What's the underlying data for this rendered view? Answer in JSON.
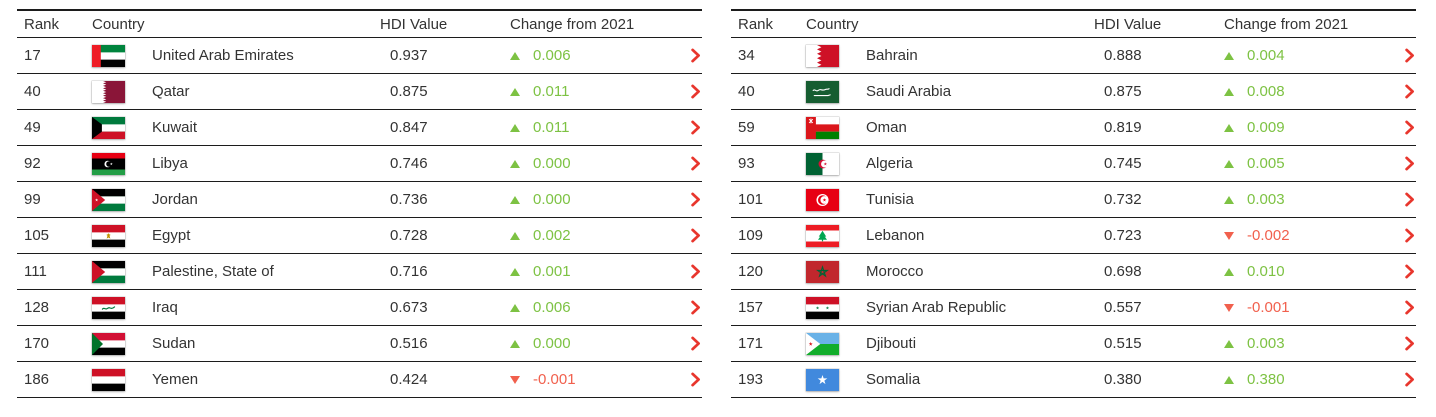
{
  "colors": {
    "positive_change": "#7dc243",
    "negative_change": "#f1604d",
    "chevron": "#e8362d",
    "row_border": "#1c1c1c",
    "text": "#333333",
    "background": "#ffffff"
  },
  "icons": {
    "up_triangle": "▲",
    "down_triangle": "▼",
    "chevron_right": "›"
  },
  "headers": {
    "rank": "Rank",
    "country": "Country",
    "hdi_value": "HDI Value",
    "change": "Change from 2021"
  },
  "chart_data": {
    "type": "table",
    "columns": [
      "Rank",
      "Country",
      "HDI Value",
      "Change from 2021"
    ],
    "tables": [
      {
        "rows": [
          {
            "rank": "17",
            "country": "United Arab Emirates",
            "flag_code": "ae",
            "hdi": "0.937",
            "change": "0.006",
            "direction": "up"
          },
          {
            "rank": "40",
            "country": "Qatar",
            "flag_code": "qa",
            "hdi": "0.875",
            "change": "0.011",
            "direction": "up"
          },
          {
            "rank": "49",
            "country": "Kuwait",
            "flag_code": "kw",
            "hdi": "0.847",
            "change": "0.011",
            "direction": "up"
          },
          {
            "rank": "92",
            "country": "Libya",
            "flag_code": "ly",
            "hdi": "0.746",
            "change": "0.000",
            "direction": "up"
          },
          {
            "rank": "99",
            "country": "Jordan",
            "flag_code": "jo",
            "hdi": "0.736",
            "change": "0.000",
            "direction": "up"
          },
          {
            "rank": "105",
            "country": "Egypt",
            "flag_code": "eg",
            "hdi": "0.728",
            "change": "0.002",
            "direction": "up"
          },
          {
            "rank": "111",
            "country": "Palestine, State of",
            "flag_code": "ps",
            "hdi": "0.716",
            "change": "0.001",
            "direction": "up"
          },
          {
            "rank": "128",
            "country": "Iraq",
            "flag_code": "iq",
            "hdi": "0.673",
            "change": "0.006",
            "direction": "up"
          },
          {
            "rank": "170",
            "country": "Sudan",
            "flag_code": "sd",
            "hdi": "0.516",
            "change": "0.000",
            "direction": "up"
          },
          {
            "rank": "186",
            "country": "Yemen",
            "flag_code": "ye",
            "hdi": "0.424",
            "change": "-0.001",
            "direction": "down"
          }
        ]
      },
      {
        "rows": [
          {
            "rank": "34",
            "country": "Bahrain",
            "flag_code": "bh",
            "hdi": "0.888",
            "change": "0.004",
            "direction": "up"
          },
          {
            "rank": "40",
            "country": "Saudi Arabia",
            "flag_code": "sa",
            "hdi": "0.875",
            "change": "0.008",
            "direction": "up"
          },
          {
            "rank": "59",
            "country": "Oman",
            "flag_code": "om",
            "hdi": "0.819",
            "change": "0.009",
            "direction": "up"
          },
          {
            "rank": "93",
            "country": "Algeria",
            "flag_code": "dz",
            "hdi": "0.745",
            "change": "0.005",
            "direction": "up"
          },
          {
            "rank": "101",
            "country": "Tunisia",
            "flag_code": "tn",
            "hdi": "0.732",
            "change": "0.003",
            "direction": "up"
          },
          {
            "rank": "109",
            "country": "Lebanon",
            "flag_code": "lb",
            "hdi": "0.723",
            "change": "-0.002",
            "direction": "down"
          },
          {
            "rank": "120",
            "country": "Morocco",
            "flag_code": "ma",
            "hdi": "0.698",
            "change": "0.010",
            "direction": "up"
          },
          {
            "rank": "157",
            "country": "Syrian Arab Republic",
            "flag_code": "sy",
            "hdi": "0.557",
            "change": "-0.001",
            "direction": "down"
          },
          {
            "rank": "171",
            "country": "Djibouti",
            "flag_code": "dj",
            "hdi": "0.515",
            "change": "0.003",
            "direction": "up"
          },
          {
            "rank": "193",
            "country": "Somalia",
            "flag_code": "so",
            "hdi": "0.380",
            "change": "0.380",
            "direction": "up"
          }
        ]
      }
    ]
  }
}
